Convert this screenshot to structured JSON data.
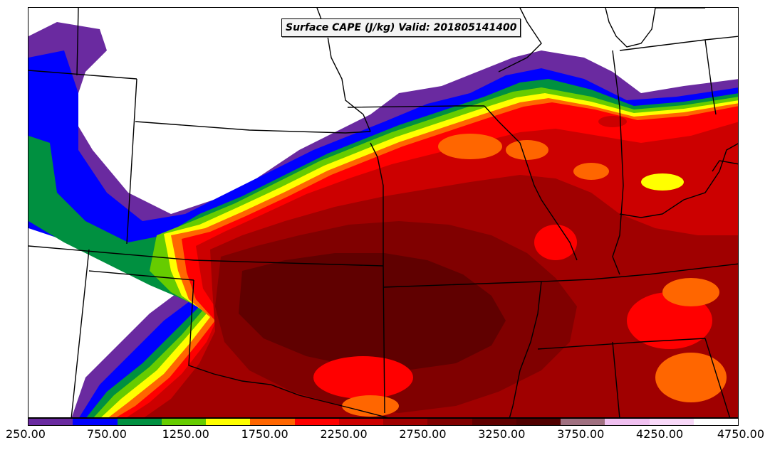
{
  "title": "Surface CAPE (J/kg) Valid: 201805141400",
  "colorbar": {
    "colors": [
      "#6a2aa0",
      "#0000ff",
      "#009040",
      "#66cc00",
      "#ffff00",
      "#ff6600",
      "#ff0000",
      "#cc0000",
      "#a00000",
      "#800000",
      "#600000",
      "#500000",
      "#a07080",
      "#f0c0f0",
      "#f8d8f8",
      "#ffffff"
    ],
    "tick_labels": [
      "250.00",
      "750.00",
      "1250.00",
      "1750.00",
      "2250.00",
      "2750.00",
      "3250.00",
      "3750.00",
      "4250.00",
      "4750.00"
    ]
  },
  "legend_levels": [
    250,
    500,
    750,
    1000,
    1250,
    1500,
    1750,
    2000,
    2250,
    2500,
    2750,
    3000,
    3250,
    3500,
    3750,
    4000,
    4250,
    4500,
    4750
  ],
  "map": {
    "region": "Central United States",
    "fill_colors": {
      "none": "#ffffff",
      "purple": "#6a2aa0",
      "blue": "#0000ff",
      "green": "#009040",
      "lime": "#66cc00",
      "yellow": "#ffff00",
      "orange": "#ff6600",
      "red": "#ff0000",
      "darkred": "#cc0000",
      "maroon": "#a00000",
      "deep": "#800000",
      "deepest": "#600000"
    }
  }
}
